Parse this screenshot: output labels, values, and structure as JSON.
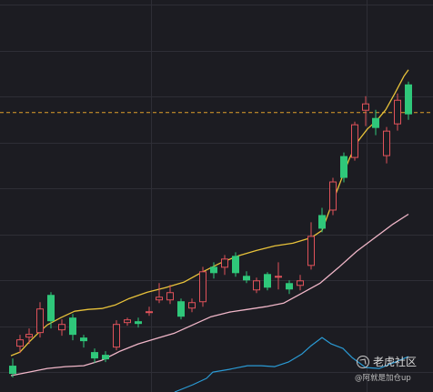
{
  "chart_data": {
    "type": "candlestick",
    "title": "",
    "xlabel": "",
    "ylabel": "",
    "ylim": [
      0,
      432
    ],
    "grid": true,
    "reference_line": {
      "value": 308,
      "color": "#e0a02a",
      "style": "dashed"
    },
    "colors": {
      "background": "#1c1c22",
      "grid": "#2e2e36",
      "up": "#e0525a",
      "down": "#2fc77a",
      "ma_fast": "#e8c23a",
      "ma_slow": "#f0b6c8",
      "volume_line": "#2a9ad4"
    },
    "candles": [
      {
        "x": 2,
        "open": 29,
        "close": 20,
        "high": 37,
        "low": 16
      },
      {
        "x": 10,
        "open": 50,
        "close": 58,
        "high": 63,
        "low": 43
      },
      {
        "x": 20,
        "open": 60,
        "close": 64,
        "high": 70,
        "low": 53
      },
      {
        "x": 32,
        "open": 65,
        "close": 92,
        "high": 99,
        "low": 60
      },
      {
        "x": 44,
        "open": 107,
        "close": 78,
        "high": 110,
        "low": 70
      },
      {
        "x": 56,
        "open": 68,
        "close": 75,
        "high": 80,
        "low": 62
      },
      {
        "x": 68,
        "open": 82,
        "close": 63,
        "high": 86,
        "low": 57
      },
      {
        "x": 80,
        "open": 60,
        "close": 56,
        "high": 63,
        "low": 49
      },
      {
        "x": 92,
        "open": 44,
        "close": 37,
        "high": 48,
        "low": 32
      },
      {
        "x": 104,
        "open": 41,
        "close": 36,
        "high": 45,
        "low": 33
      },
      {
        "x": 116,
        "open": 49,
        "close": 75,
        "high": 79,
        "low": 46
      },
      {
        "x": 128,
        "open": 76,
        "close": 80,
        "high": 82,
        "low": 73
      },
      {
        "x": 140,
        "open": 78,
        "close": 75,
        "high": 82,
        "low": 71
      },
      {
        "x": 152,
        "open": 87,
        "close": 89,
        "high": 94,
        "low": 84
      },
      {
        "x": 163,
        "open": 101,
        "close": 105,
        "high": 120,
        "low": 98
      },
      {
        "x": 175,
        "open": 101,
        "close": 110,
        "high": 118,
        "low": 97
      },
      {
        "x": 187,
        "open": 100,
        "close": 83,
        "high": 103,
        "low": 80
      },
      {
        "x": 199,
        "open": 92,
        "close": 99,
        "high": 103,
        "low": 88
      },
      {
        "x": 211,
        "open": 99,
        "close": 133,
        "high": 138,
        "low": 94
      },
      {
        "x": 223,
        "open": 138,
        "close": 131,
        "high": 143,
        "low": 125
      },
      {
        "x": 235,
        "open": 137,
        "close": 147,
        "high": 151,
        "low": 129
      },
      {
        "x": 247,
        "open": 150,
        "close": 131,
        "high": 154,
        "low": 127
      },
      {
        "x": 259,
        "open": 128,
        "close": 123,
        "high": 133,
        "low": 120
      },
      {
        "x": 270,
        "open": 112,
        "close": 123,
        "high": 126,
        "low": 109
      },
      {
        "x": 282,
        "open": 130,
        "close": 115,
        "high": 132,
        "low": 112
      },
      {
        "x": 294,
        "open": 126,
        "close": 128,
        "high": 143,
        "low": 113
      },
      {
        "x": 306,
        "open": 120,
        "close": 113,
        "high": 123,
        "low": 108
      },
      {
        "x": 318,
        "open": 117,
        "close": 123,
        "high": 129,
        "low": 112
      },
      {
        "x": 330,
        "open": 139,
        "close": 172,
        "high": 187,
        "low": 135
      },
      {
        "x": 342,
        "open": 195,
        "close": 180,
        "high": 203,
        "low": 176
      },
      {
        "x": 354,
        "open": 200,
        "close": 232,
        "high": 236,
        "low": 195
      },
      {
        "x": 366,
        "open": 260,
        "close": 236,
        "high": 264,
        "low": 231
      },
      {
        "x": 378,
        "open": 258,
        "close": 295,
        "high": 298,
        "low": 255
      },
      {
        "x": 390,
        "open": 310,
        "close": 318,
        "high": 326,
        "low": 293
      },
      {
        "x": 401,
        "open": 302,
        "close": 291,
        "high": 311,
        "low": 283
      },
      {
        "x": 413,
        "open": 260,
        "close": 288,
        "high": 292,
        "low": 252
      },
      {
        "x": 425,
        "open": 295,
        "close": 322,
        "high": 329,
        "low": 288
      },
      {
        "x": 437,
        "open": 339,
        "close": 306,
        "high": 342,
        "low": 300
      }
    ],
    "ma_fast": [
      {
        "x": 0,
        "y": 40
      },
      {
        "x": 10,
        "y": 44
      },
      {
        "x": 20,
        "y": 55
      },
      {
        "x": 30,
        "y": 65
      },
      {
        "x": 40,
        "y": 74
      },
      {
        "x": 55,
        "y": 82
      },
      {
        "x": 70,
        "y": 89
      },
      {
        "x": 85,
        "y": 91
      },
      {
        "x": 100,
        "y": 92
      },
      {
        "x": 115,
        "y": 96
      },
      {
        "x": 130,
        "y": 103
      },
      {
        "x": 150,
        "y": 110
      },
      {
        "x": 170,
        "y": 115
      },
      {
        "x": 190,
        "y": 121
      },
      {
        "x": 210,
        "y": 132
      },
      {
        "x": 230,
        "y": 142
      },
      {
        "x": 250,
        "y": 150
      },
      {
        "x": 270,
        "y": 156
      },
      {
        "x": 290,
        "y": 161
      },
      {
        "x": 310,
        "y": 164
      },
      {
        "x": 330,
        "y": 170
      },
      {
        "x": 342,
        "y": 178
      },
      {
        "x": 352,
        "y": 205
      },
      {
        "x": 362,
        "y": 231
      },
      {
        "x": 372,
        "y": 257
      },
      {
        "x": 382,
        "y": 277
      },
      {
        "x": 392,
        "y": 290
      },
      {
        "x": 402,
        "y": 299
      },
      {
        "x": 412,
        "y": 311
      },
      {
        "x": 422,
        "y": 329
      },
      {
        "x": 432,
        "y": 348
      },
      {
        "x": 437,
        "y": 355
      }
    ],
    "ma_slow": [
      {
        "x": 0,
        "y": 18
      },
      {
        "x": 20,
        "y": 22
      },
      {
        "x": 40,
        "y": 26
      },
      {
        "x": 60,
        "y": 28
      },
      {
        "x": 80,
        "y": 29
      },
      {
        "x": 100,
        "y": 35
      },
      {
        "x": 120,
        "y": 45
      },
      {
        "x": 140,
        "y": 53
      },
      {
        "x": 160,
        "y": 59
      },
      {
        "x": 180,
        "y": 65
      },
      {
        "x": 200,
        "y": 74
      },
      {
        "x": 220,
        "y": 83
      },
      {
        "x": 240,
        "y": 88
      },
      {
        "x": 260,
        "y": 91
      },
      {
        "x": 280,
        "y": 94
      },
      {
        "x": 300,
        "y": 98
      },
      {
        "x": 320,
        "y": 109
      },
      {
        "x": 340,
        "y": 120
      },
      {
        "x": 360,
        "y": 137
      },
      {
        "x": 380,
        "y": 155
      },
      {
        "x": 400,
        "y": 170
      },
      {
        "x": 420,
        "y": 185
      },
      {
        "x": 437,
        "y": 196
      }
    ],
    "volume_line": [
      {
        "x": 180,
        "y": 0
      },
      {
        "x": 200,
        "y": 8
      },
      {
        "x": 215,
        "y": 15
      },
      {
        "x": 222,
        "y": 22
      },
      {
        "x": 240,
        "y": 25
      },
      {
        "x": 260,
        "y": 29
      },
      {
        "x": 275,
        "y": 29
      },
      {
        "x": 290,
        "y": 28
      },
      {
        "x": 305,
        "y": 33
      },
      {
        "x": 320,
        "y": 42
      },
      {
        "x": 330,
        "y": 51
      },
      {
        "x": 342,
        "y": 60
      },
      {
        "x": 352,
        "y": 53
      },
      {
        "x": 365,
        "y": 48
      },
      {
        "x": 375,
        "y": 38
      },
      {
        "x": 390,
        "y": 27
      },
      {
        "x": 405,
        "y": 26
      },
      {
        "x": 420,
        "y": 32
      },
      {
        "x": 437,
        "y": 39
      }
    ]
  },
  "watermark": {
    "title": "老虎社区",
    "handle": "@阿就是加仓up"
  }
}
